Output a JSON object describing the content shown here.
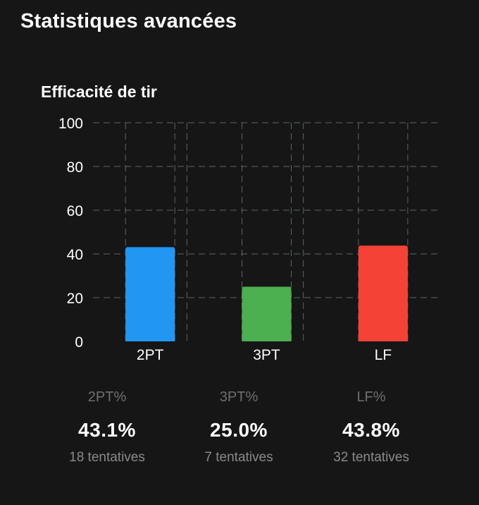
{
  "header": {
    "title": "Statistiques avancées"
  },
  "chart_data": {
    "type": "bar",
    "title": "Efficacité de tir",
    "categories": [
      "2PT",
      "3PT",
      "LF"
    ],
    "values": [
      43.1,
      25.0,
      43.8
    ],
    "colors": [
      "#2196f3",
      "#4caf50",
      "#f44336"
    ],
    "ylim": [
      0,
      100
    ],
    "yticks": [
      0,
      20,
      40,
      60,
      80,
      100
    ],
    "grid": true,
    "xlabel": "",
    "ylabel": ""
  },
  "stats": [
    {
      "label": "2PT%",
      "value": "43.1%",
      "attempts": "18 tentatives"
    },
    {
      "label": "3PT%",
      "value": "25.0%",
      "attempts": "7 tentatives"
    },
    {
      "label": "LF%",
      "value": "43.8%",
      "attempts": "32 tentatives"
    }
  ]
}
